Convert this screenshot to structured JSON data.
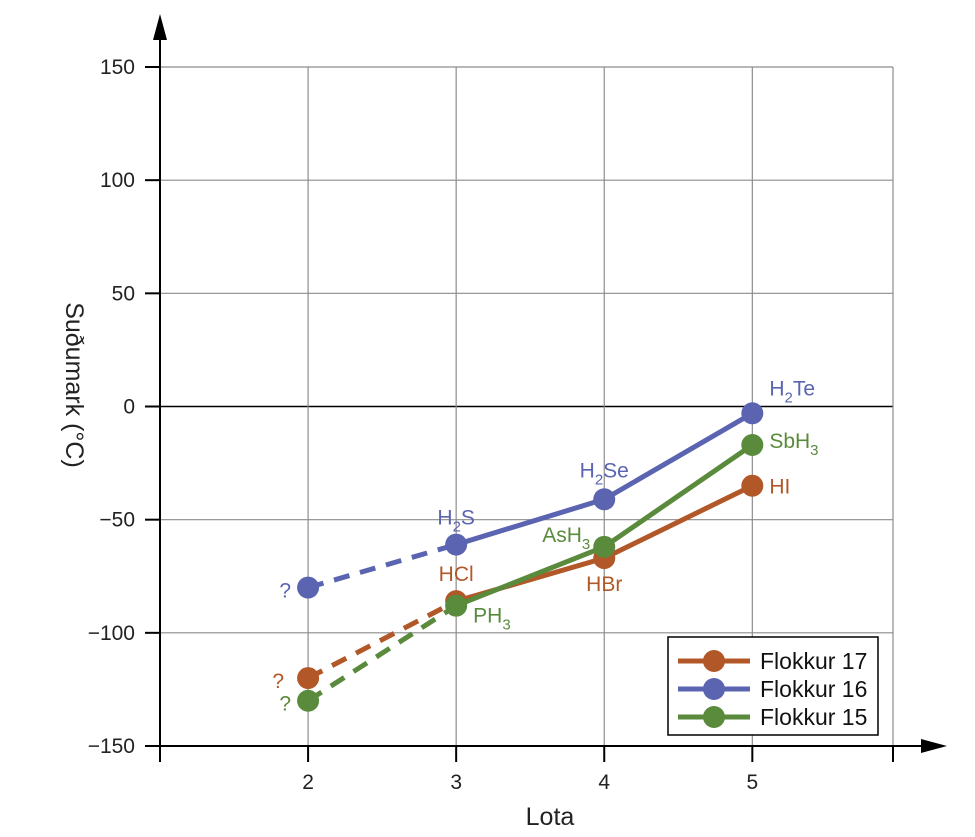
{
  "chart_data": {
    "type": "line",
    "xlabel": "Lota",
    "ylabel": "Suðumark (°C)",
    "x_ticks": [
      2,
      3,
      4,
      5
    ],
    "y_ticks": [
      150,
      100,
      50,
      0,
      -50,
      -100,
      -150
    ],
    "y_tick_labels": [
      "150",
      "100",
      "50",
      "0",
      "−50",
      "−100",
      "−150"
    ],
    "xlim": [
      1,
      5.95
    ],
    "ylim": [
      -150,
      150
    ],
    "grid": true,
    "legend_position": "bottom-right",
    "series": [
      {
        "name": "Flokkur 17",
        "color": "#b15728",
        "points": [
          {
            "x": 2,
            "y": -120,
            "label": "?",
            "estimated": true
          },
          {
            "x": 3,
            "y": -86,
            "label": "HCl",
            "sub": ""
          },
          {
            "x": 4,
            "y": -67,
            "label": "HBr",
            "sub": ""
          },
          {
            "x": 5,
            "y": -35,
            "label": "HI",
            "sub": ""
          }
        ]
      },
      {
        "name": "Flokkur 16",
        "color": "#5b64b0",
        "points": [
          {
            "x": 2,
            "y": -80,
            "label": "?",
            "estimated": true
          },
          {
            "x": 3,
            "y": -61,
            "label": "H",
            "sub": "2",
            "tail": "S"
          },
          {
            "x": 4,
            "y": -41,
            "label": "H",
            "sub": "2",
            "tail": "Se"
          },
          {
            "x": 5,
            "y": -3,
            "label": "H",
            "sub": "2",
            "tail": "Te"
          }
        ]
      },
      {
        "name": "Flokkur 15",
        "color": "#5a8a3c",
        "points": [
          {
            "x": 2,
            "y": -130,
            "label": "?",
            "estimated": true
          },
          {
            "x": 3,
            "y": -88,
            "label": "PH",
            "sub": "3"
          },
          {
            "x": 4,
            "y": -62,
            "label": "AsH",
            "sub": "3"
          },
          {
            "x": 5,
            "y": -17,
            "label": "SbH",
            "sub": "3"
          }
        ]
      }
    ]
  }
}
